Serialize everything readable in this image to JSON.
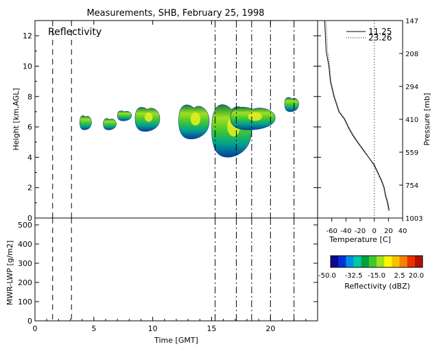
{
  "title": "Measurements, SHB, February 25, 1998",
  "panel_label": "Reflectivity",
  "chart_data": [
    {
      "id": "reflectivity",
      "type": "heatmap",
      "xlabel": "",
      "ylabel": "Height [km,AGL]",
      "xlim": [
        0,
        24
      ],
      "ylim": [
        0,
        13
      ],
      "yticks": [
        0,
        2,
        4,
        6,
        8,
        10,
        12
      ],
      "xticks": [
        0,
        5,
        10,
        15,
        20
      ],
      "vlines": {
        "dash": [
          1.5,
          3.1
        ],
        "dashdot": [
          15.3,
          17.1,
          18.4,
          20.0,
          22.0
        ]
      },
      "echoes": [
        {
          "t_start": 3.8,
          "t_end": 4.8,
          "h_bottom": 5.8,
          "h_top": 6.8
        },
        {
          "t_start": 5.8,
          "t_end": 6.9,
          "h_bottom": 5.8,
          "h_top": 6.6
        },
        {
          "t_start": 7.0,
          "t_end": 8.2,
          "h_bottom": 6.4,
          "h_top": 7.1
        },
        {
          "t_start": 8.5,
          "t_end": 10.6,
          "h_bottom": 5.7,
          "h_top": 7.4
        },
        {
          "t_start": 12.2,
          "t_end": 14.8,
          "h_bottom": 5.2,
          "h_top": 7.6
        },
        {
          "t_start": 15.0,
          "t_end": 18.4,
          "h_bottom": 4.0,
          "h_top": 7.7
        },
        {
          "t_start": 16.6,
          "t_end": 20.4,
          "h_bottom": 5.8,
          "h_top": 7.4
        },
        {
          "t_start": 21.2,
          "t_end": 22.4,
          "h_bottom": 7.0,
          "h_top": 8.0
        }
      ]
    },
    {
      "id": "profile",
      "type": "line",
      "xlabel": "Temperature [C]",
      "ylabel": "Pressure [mb]",
      "xlim": [
        -80,
        40
      ],
      "xticks": [
        -60,
        -40,
        -20,
        0,
        20,
        40
      ],
      "pressure_ticks": [
        "147",
        "208",
        "294",
        "410",
        "559",
        "754",
        "1003"
      ],
      "series": [
        {
          "name": "11.25",
          "style": "solid",
          "temperature": [
            21,
            19,
            16,
            14,
            10,
            5,
            0,
            -8,
            -16,
            -24,
            -31,
            -37,
            -42,
            -50,
            -57,
            -62,
            -64,
            -68,
            -69,
            -70
          ],
          "height_km": [
            0.5,
            1.0,
            1.5,
            2.0,
            2.5,
            3.0,
            3.5,
            4.0,
            4.5,
            5.0,
            5.5,
            6.0,
            6.5,
            7.0,
            8.0,
            9.0,
            10.0,
            11.0,
            12.0,
            13.0
          ]
        },
        {
          "name": "23.26",
          "style": "dotted",
          "temperature": [
            20,
            18,
            15,
            13,
            9,
            4,
            -1,
            -8,
            -15,
            -23,
            -30,
            -36,
            -41,
            -49,
            -56,
            -61,
            -63,
            -66,
            -67,
            -68
          ],
          "height_km": [
            0.5,
            1.0,
            1.5,
            2.0,
            2.5,
            3.0,
            3.5,
            4.0,
            4.5,
            5.0,
            5.5,
            6.0,
            6.5,
            7.0,
            8.0,
            9.0,
            10.0,
            11.0,
            12.0,
            13.0
          ]
        }
      ]
    },
    {
      "id": "lwp",
      "type": "line",
      "xlabel": "Time [GMT]",
      "ylabel": "MWR-LWP [g/m2]",
      "xlim": [
        0,
        24
      ],
      "ylim": [
        0,
        500
      ],
      "yticks": [
        0,
        100,
        200,
        300,
        400,
        500
      ],
      "xticks": [
        0,
        5,
        10,
        15,
        20
      ],
      "series": []
    }
  ],
  "colorbar": {
    "title": "Reflectivity (dBZ)",
    "tick_labels": [
      "-50.0",
      "-32.5",
      "-15.0",
      "2.5",
      "20.0"
    ],
    "colors": [
      "#0a0a8c",
      "#0030d8",
      "#0090e0",
      "#00c8a0",
      "#00a040",
      "#40c830",
      "#a0e020",
      "#f8f800",
      "#f8c000",
      "#f88000",
      "#e83000",
      "#b01000"
    ]
  }
}
